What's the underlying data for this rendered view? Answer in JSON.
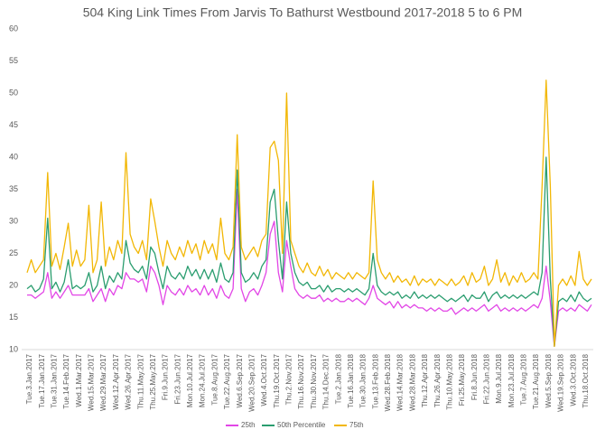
{
  "chart_data": {
    "type": "line",
    "title": "504 King Link Times From Jarvis To Bathurst Westbound 2017-2018 5 to 6 PM",
    "categories": [
      "Tue.3.Jan.2017",
      null,
      null,
      "Tue.17.Jan.2017",
      null,
      null,
      "Tue.31.Jan.2017",
      null,
      null,
      "Tue.14.Feb.2017",
      null,
      null,
      "Wed.1.Mar.2017",
      null,
      null,
      "Wed.15.Mar.2017",
      null,
      null,
      "Wed.29.Mar.2017",
      null,
      null,
      "Wed.12.Apr.2017",
      null,
      null,
      "Wed.26.Apr.2017",
      null,
      null,
      "Thu.11.May.2017",
      null,
      null,
      "Thu.25.May.2017",
      null,
      null,
      "Fri.9.Jun.2017",
      null,
      null,
      "Fri.23.Jun.2017",
      null,
      null,
      "Mon.10.Jul.2017",
      null,
      null,
      "Mon.24.Jul.2017",
      null,
      null,
      "Tue.8.Aug.2017",
      null,
      null,
      "Tue.22.Aug.2017",
      null,
      null,
      "Wed.6.Sep.2017",
      null,
      null,
      "Wed.20.Sep.2017",
      null,
      null,
      "Wed.4.Oct.2017",
      null,
      null,
      "Thu.19.Oct.2017",
      null,
      null,
      "Thu.2.Nov.2017",
      null,
      null,
      "Thu.16.Nov.2017",
      null,
      null,
      "Thu.30.Nov.2017",
      null,
      null,
      "Thu.14.Dec.2017",
      null,
      null,
      "Tue.2.Jan.2018",
      null,
      null,
      "Tue.16.Jan.2018",
      null,
      null,
      "Tue.30.Jan.2018",
      null,
      null,
      "Tue.13.Feb.2018",
      null,
      null,
      "Wed.28.Feb.2018",
      null,
      null,
      "Wed.14.Mar.2018",
      null,
      null,
      "Wed.28.Mar.2018",
      null,
      null,
      "Thu.12.Apr.2018",
      null,
      null,
      "Thu.26.Apr.2018",
      null,
      null,
      "Thu.10.May.2018",
      null,
      null,
      "Fri.25.May.2018",
      null,
      null,
      "Fri.8.Jun.2018",
      null,
      null,
      "Fri.22.Jun.2018",
      null,
      null,
      "Mon.9.Jul.2018",
      null,
      null,
      "Mon.23.Jul.2018",
      null,
      null,
      "Tue.7.Aug.2018",
      null,
      null,
      "Tue.21.Aug.2018",
      null,
      null,
      "Wed.5.Sep.2018",
      null,
      null,
      "Wed.19.Sep.2018",
      null,
      null,
      "Wed.3.Oct.2018",
      null,
      null,
      "Thu.18.Oct.2018",
      null,
      null
    ],
    "series": [
      {
        "name": "25th",
        "color": "#e246e6",
        "values": [
          18.5,
          18.5,
          18,
          18.5,
          19,
          22,
          18,
          19,
          18,
          19,
          20,
          18.5,
          18.5,
          18.5,
          18.5,
          19.5,
          17.5,
          18.5,
          19.5,
          17.5,
          19.5,
          18.5,
          20,
          19.5,
          22,
          21,
          21,
          20.5,
          21,
          19,
          23,
          22,
          20,
          17,
          20,
          19,
          18.5,
          19.5,
          18.5,
          20,
          19,
          19.5,
          18.5,
          20,
          18.5,
          19.5,
          18,
          20,
          18.5,
          18,
          19.5,
          35,
          19.5,
          17.5,
          19,
          19.5,
          18.5,
          20,
          22,
          28,
          30,
          22,
          19,
          27,
          23,
          19.5,
          18.5,
          18,
          18.5,
          18,
          18,
          18.5,
          17.5,
          18,
          17.5,
          18,
          17.5,
          17.5,
          18,
          17.5,
          18,
          17.5,
          17,
          18,
          20,
          18,
          17.5,
          17,
          17.5,
          16.5,
          17.5,
          16.5,
          17,
          16.5,
          17,
          16.5,
          16.5,
          16,
          16.5,
          16,
          16.5,
          16,
          16,
          16.5,
          15.5,
          16,
          16.5,
          16,
          16.5,
          16,
          16.5,
          17,
          16,
          16.5,
          17,
          16,
          16.5,
          16,
          16.5,
          16,
          16.5,
          16,
          16.5,
          17,
          16.5,
          18,
          23,
          17.5,
          10.5,
          16,
          16.5,
          16,
          16.5,
          16,
          17,
          16.5,
          16,
          17
        ]
      },
      {
        "name": "50th Percentile",
        "color": "#2a9d6f",
        "values": [
          19.5,
          20,
          19,
          19.5,
          21,
          30.5,
          19.5,
          20.5,
          19,
          20.5,
          24,
          19.5,
          20,
          19.5,
          20,
          22,
          19,
          20,
          23,
          19.5,
          21.5,
          20.5,
          22,
          21,
          27,
          23.5,
          22.5,
          22,
          23,
          21,
          26,
          25,
          22,
          19.5,
          23,
          21.5,
          21,
          22,
          21,
          23,
          21.5,
          22.5,
          21,
          22.5,
          21,
          22.5,
          20.5,
          23.5,
          21,
          20.5,
          22,
          38,
          22,
          20.5,
          21,
          22,
          21,
          23,
          24,
          33,
          35,
          27,
          21,
          33,
          25,
          22,
          20.5,
          20,
          20.5,
          19.5,
          19.5,
          20,
          19,
          20,
          19,
          19.5,
          19.5,
          19,
          19.5,
          19,
          19.5,
          19,
          18.5,
          19.5,
          25,
          20,
          19,
          18.5,
          19,
          18.5,
          19,
          18,
          18.5,
          18,
          19,
          18,
          18.5,
          18,
          18.5,
          18,
          18.5,
          18,
          17.5,
          18,
          17.5,
          18,
          18.5,
          17.5,
          18.5,
          18,
          18,
          19,
          17.5,
          18.5,
          19,
          18,
          18.5,
          18,
          18.5,
          18,
          18.5,
          18,
          18.5,
          19,
          18.5,
          22,
          40,
          21,
          10.5,
          17.5,
          18,
          17.5,
          18.5,
          17.5,
          19,
          18,
          17.5,
          18
        ]
      },
      {
        "name": "75th",
        "color": "#f2b705",
        "values": [
          22,
          24,
          22,
          23,
          24,
          37.6,
          23,
          25,
          22.5,
          26,
          29.7,
          23,
          25.5,
          23,
          24,
          32.5,
          22,
          24,
          33,
          23,
          26,
          24,
          27,
          25,
          40.7,
          28,
          26,
          25,
          27,
          24,
          33.5,
          30,
          26,
          23,
          27,
          25,
          24,
          26,
          24.5,
          27,
          25,
          26.5,
          24,
          27,
          25,
          26.5,
          24,
          30.5,
          25,
          24,
          26,
          43.5,
          26,
          24,
          25,
          26,
          24.5,
          27,
          28,
          41.5,
          42.5,
          39.5,
          25,
          50,
          27,
          25,
          23,
          22,
          23.5,
          22,
          21.5,
          23,
          21.5,
          22.5,
          21,
          22,
          21.5,
          21,
          22,
          21,
          22,
          21.5,
          21,
          22,
          36.3,
          24,
          22,
          21,
          22,
          20.5,
          21.5,
          20.5,
          21,
          20,
          21.5,
          20,
          21,
          20.5,
          21,
          20,
          21,
          20.5,
          20,
          21,
          20,
          20.5,
          21.5,
          20,
          22,
          20.5,
          21,
          23,
          20,
          21,
          24,
          20.5,
          22,
          20,
          21.5,
          20.5,
          22,
          20.5,
          21,
          22,
          21,
          35.5,
          52,
          35.5,
          10.5,
          20,
          21,
          20,
          21.5,
          20,
          25.3,
          21,
          20,
          21
        ]
      }
    ],
    "ylim": [
      10,
      60
    ],
    "yticks": [
      10,
      15,
      20,
      25,
      30,
      35,
      40,
      45,
      50,
      55,
      60
    ]
  }
}
